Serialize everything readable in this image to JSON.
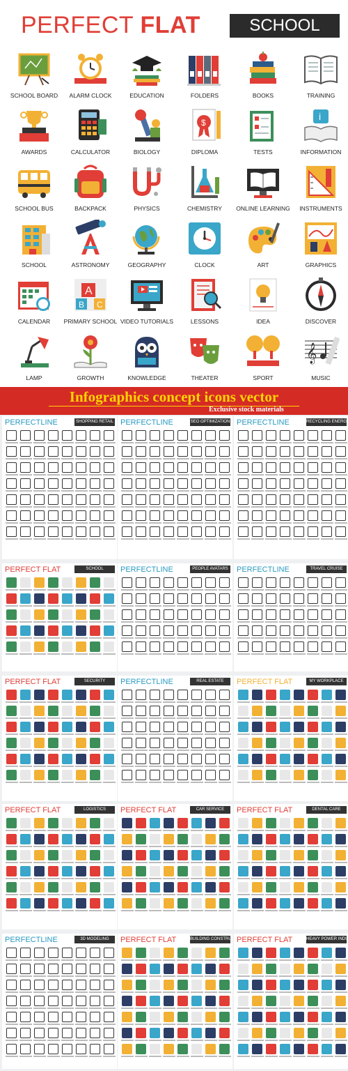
{
  "header": {
    "title_light": "PERFECT ",
    "title_bold": "FLAT",
    "tag": "SCHOOL"
  },
  "icons": [
    {
      "label": "SCHOOL BOARD",
      "icon": "school-board-icon"
    },
    {
      "label": "ALARM CLOCK",
      "icon": "alarm-clock-icon"
    },
    {
      "label": "EDUCATION",
      "icon": "education-icon"
    },
    {
      "label": "FOLDERS",
      "icon": "folders-icon"
    },
    {
      "label": "BOOKS",
      "icon": "books-icon"
    },
    {
      "label": "TRAINING",
      "icon": "training-icon"
    },
    {
      "label": "AWARDS",
      "icon": "awards-icon"
    },
    {
      "label": "CALCULATOR",
      "icon": "calculator-icon"
    },
    {
      "label": "BIOLOGY",
      "icon": "biology-icon"
    },
    {
      "label": "DIPLOMA",
      "icon": "diploma-icon"
    },
    {
      "label": "TESTS",
      "icon": "tests-icon"
    },
    {
      "label": "INFORMATION",
      "icon": "information-icon"
    },
    {
      "label": "SCHOOL BUS",
      "icon": "school-bus-icon"
    },
    {
      "label": "BACKPACK",
      "icon": "backpack-icon"
    },
    {
      "label": "PHYSICS",
      "icon": "physics-icon"
    },
    {
      "label": "CHEMISTRY",
      "icon": "chemistry-icon"
    },
    {
      "label": "ONLINE LEARNING",
      "icon": "online-learning-icon"
    },
    {
      "label": "INSTRUMENTS",
      "icon": "instruments-icon"
    },
    {
      "label": "SCHOOL",
      "icon": "school-icon"
    },
    {
      "label": "ASTRONOMY",
      "icon": "astronomy-icon"
    },
    {
      "label": "GEOGRAPHY",
      "icon": "geography-icon"
    },
    {
      "label": "CLOCK",
      "icon": "clock-icon"
    },
    {
      "label": "ART",
      "icon": "art-icon"
    },
    {
      "label": "GRAPHICS",
      "icon": "graphics-icon"
    },
    {
      "label": "CALENDAR",
      "icon": "calendar-icon"
    },
    {
      "label": "PRIMARY SCHOOL",
      "icon": "primary-school-icon"
    },
    {
      "label": "VIDEO TUTORIALS",
      "icon": "video-tutorials-icon"
    },
    {
      "label": "LESSONS",
      "icon": "lessons-icon"
    },
    {
      "label": "IDEA",
      "icon": "idea-icon"
    },
    {
      "label": "DISCOVER",
      "icon": "discover-icon"
    },
    {
      "label": "LAMP",
      "icon": "lamp-icon"
    },
    {
      "label": "GROWTH",
      "icon": "growth-icon"
    },
    {
      "label": "KNOWLEDGE",
      "icon": "knowledge-icon"
    },
    {
      "label": "THEATER",
      "icon": "theater-icon"
    },
    {
      "label": "SPORT",
      "icon": "sport-icon"
    },
    {
      "label": "MUSIC",
      "icon": "music-icon"
    }
  ],
  "banner": {
    "title": "Infographics concept icons vector",
    "subtitle": "Exclusive stock materials"
  },
  "sheets": [
    {
      "title": "PERFECTLINE",
      "tag": "SHOPPING RETAIL",
      "style": "line"
    },
    {
      "title": "PERFECTLINE",
      "tag": "SEO OPTIMIZATION",
      "style": "line"
    },
    {
      "title": "PERFECTLINE",
      "tag": "RECYCLING ENERGY",
      "style": "line"
    },
    {
      "title": "PERFECT FLAT",
      "tag": "SCHOOL",
      "style": "flat"
    },
    {
      "title": "PERFECTLINE",
      "tag": "PEOPLE AVATARS",
      "style": "line"
    },
    {
      "title": "PERFECTLINE",
      "tag": "TRAVEL CRUISE",
      "style": "line"
    },
    {
      "title": "PERFECT FLAT",
      "tag": "SECURITY",
      "style": "flat"
    },
    {
      "title": "PERFECTLINE",
      "tag": "REAL ESTATE",
      "style": "line"
    },
    {
      "title": "PERFECT FLAT",
      "tag": "MY WORKPLACE",
      "style": "flat"
    },
    {
      "title": "PERFECT FLAT",
      "tag": "LOGISTICS",
      "style": "flat"
    },
    {
      "title": "PERFECT FLAT",
      "tag": "CAR SERVICE",
      "style": "flat"
    },
    {
      "title": "PERFECT FLAT",
      "tag": "DENTAL CARE",
      "style": "flat"
    },
    {
      "title": "PERFECTLINE",
      "tag": "3D MODELING",
      "style": "line"
    },
    {
      "title": "PERFECT FLAT",
      "tag": "BUILDING CONSTRUCTION",
      "style": "flat"
    },
    {
      "title": "PERFECT FLAT",
      "tag": "HEAVY POWER INDUSTRY",
      "style": "flat"
    }
  ],
  "colors": {
    "red": "#e03e36",
    "dark": "#2b2b2b",
    "banner": "#d52b25",
    "banner_text": "#ffd400"
  }
}
